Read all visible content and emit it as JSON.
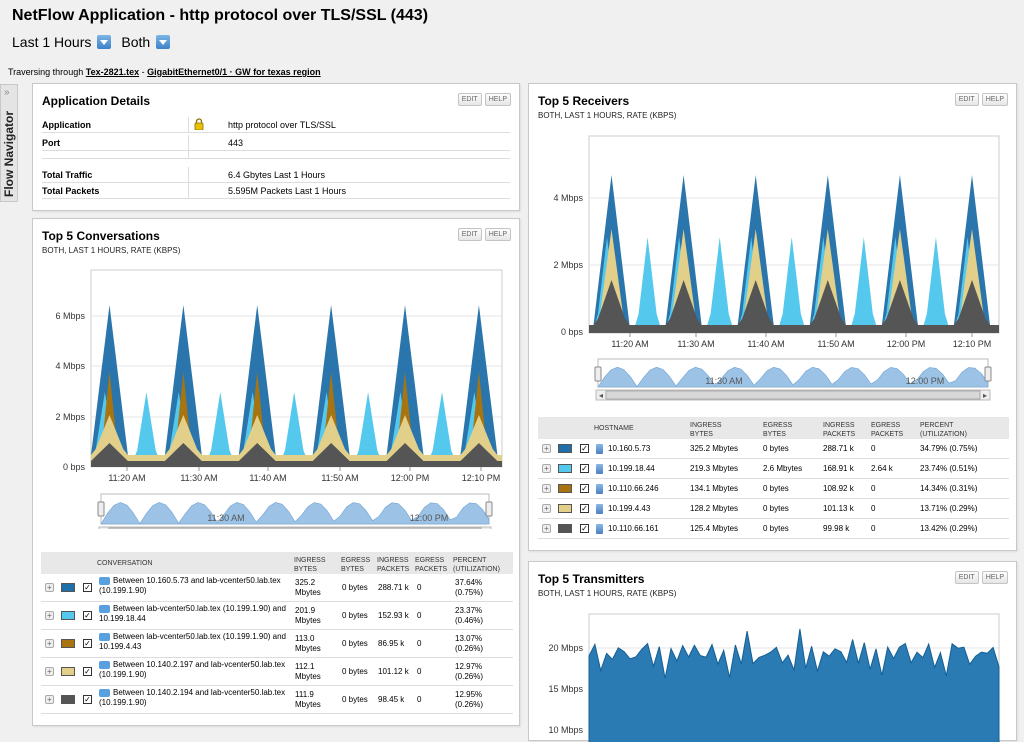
{
  "title": "NetFlow Application - http protocol over TLS/SSL (443)",
  "filters": {
    "time": "Last 1 Hours",
    "direction": "Both"
  },
  "traversing": {
    "prefix": "Traversing through",
    "node": "Tex-2821.tex",
    "sep": " - ",
    "iface": "GigabitEthernet0/1 · GW for texas region"
  },
  "navigator": {
    "label": "Flow Navigator"
  },
  "buttons": {
    "edit": "EDIT",
    "help": "HELP"
  },
  "colors": {
    "c1": "#1f6fa8",
    "c2": "#55c8ee",
    "c3": "#a87410",
    "c4": "#e2d08a",
    "c5": "#555555"
  },
  "app_details": {
    "title": "Application Details",
    "rows": [
      {
        "label": "Application",
        "value": "http protocol over TLS/SSL"
      },
      {
        "label": "Port",
        "value": "443"
      },
      {
        "label": "Total Traffic",
        "value": "6.4 Gbytes Last 1 Hours"
      },
      {
        "label": "Total Packets",
        "value": "5.595M Packets  Last 1 Hours"
      }
    ]
  },
  "conversations": {
    "title": "Top 5 Conversations",
    "subtitle": "BOTH, LAST 1 HOURS, RATE (KBPS)",
    "y_ticks": [
      "6 Mbps",
      "4 Mbps",
      "2 Mbps",
      "0 bps"
    ],
    "x_ticks": [
      "11:20 AM",
      "11:30 AM",
      "11:40 AM",
      "11:50 AM",
      "12:00 PM",
      "12:10 PM"
    ],
    "nav_ticks": [
      "11:30 AM",
      "12:00 PM"
    ],
    "headers": [
      "CONVERSATION",
      "INGRESS BYTES",
      "EGRESS BYTES",
      "INGRESS PACKETS",
      "EGRESS PACKETS",
      "PERCENT (UTILIZATION)"
    ],
    "rows": [
      {
        "name": "Between 10.160.5.73 and lab-vcenter50.lab.tex (10.199.1.90)",
        "in_bytes": "325.2 Mbytes",
        "eg_bytes": "0 bytes",
        "in_pk": "288.71 k",
        "eg_pk": "0",
        "pct": "37.64% (0.75%)"
      },
      {
        "name": "Between lab-vcenter50.lab.tex (10.199.1.90) and 10.199.18.44",
        "in_bytes": "201.9 Mbytes",
        "eg_bytes": "0 bytes",
        "in_pk": "152.93 k",
        "eg_pk": "0",
        "pct": "23.37% (0.46%)"
      },
      {
        "name": "Between lab-vcenter50.lab.tex (10.199.1.90) and 10.199.4.43",
        "in_bytes": "113.0 Mbytes",
        "eg_bytes": "0 bytes",
        "in_pk": "86.95 k",
        "eg_pk": "0",
        "pct": "13.07% (0.26%)"
      },
      {
        "name": "Between 10.140.2.197 and lab-vcenter50.lab.tex (10.199.1.90)",
        "in_bytes": "112.1 Mbytes",
        "eg_bytes": "0 bytes",
        "in_pk": "101.12 k",
        "eg_pk": "0",
        "pct": "12.97% (0.26%)"
      },
      {
        "name": "Between 10.140.2.194 and lab-vcenter50.lab.tex (10.199.1.90)",
        "in_bytes": "111.9 Mbytes",
        "eg_bytes": "0 bytes",
        "in_pk": "98.45 k",
        "eg_pk": "0",
        "pct": "12.95% (0.26%)"
      }
    ]
  },
  "receivers": {
    "title": "Top 5 Receivers",
    "subtitle": "BOTH, LAST 1 HOURS, RATE (KBPS)",
    "y_ticks": [
      "4 Mbps",
      "2 Mbps",
      "0 bps"
    ],
    "x_ticks": [
      "11:20 AM",
      "11:30 AM",
      "11:40 AM",
      "11:50 AM",
      "12:00 PM",
      "12:10 PM"
    ],
    "nav_ticks": [
      "11:30 AM",
      "12:00 PM"
    ],
    "headers": [
      "HOSTNAME",
      "INGRESS BYTES",
      "EGRESS BYTES",
      "INGRESS PACKETS",
      "EGRESS PACKETS",
      "PERCENT (UTILIZATION)"
    ],
    "rows": [
      {
        "name": "10.160.5.73",
        "in_bytes": "325.2 Mbytes",
        "eg_bytes": "0 bytes",
        "in_pk": "288.71 k",
        "eg_pk": "0",
        "pct": "34.79% (0.75%)"
      },
      {
        "name": "10.199.18.44",
        "in_bytes": "219.3 Mbytes",
        "eg_bytes": "2.6 Mbytes",
        "in_pk": "168.91 k",
        "eg_pk": "2.64 k",
        "pct": "23.74% (0.51%)"
      },
      {
        "name": "10.110.66.246",
        "in_bytes": "134.1 Mbytes",
        "eg_bytes": "0 bytes",
        "in_pk": "108.92 k",
        "eg_pk": "0",
        "pct": "14.34% (0.31%)"
      },
      {
        "name": "10.199.4.43",
        "in_bytes": "128.2 Mbytes",
        "eg_bytes": "0 bytes",
        "in_pk": "101.13 k",
        "eg_pk": "0",
        "pct": "13.71% (0.29%)"
      },
      {
        "name": "10.110.66.161",
        "in_bytes": "125.4 Mbytes",
        "eg_bytes": "0 bytes",
        "in_pk": "99.98 k",
        "eg_pk": "0",
        "pct": "13.42% (0.29%)"
      }
    ]
  },
  "transmitters": {
    "title": "Top 5 Transmitters",
    "subtitle": "BOTH, LAST 1 HOURS, RATE (KBPS)",
    "y_ticks": [
      "20 Mbps",
      "15 Mbps",
      "10 Mbps"
    ]
  }
}
